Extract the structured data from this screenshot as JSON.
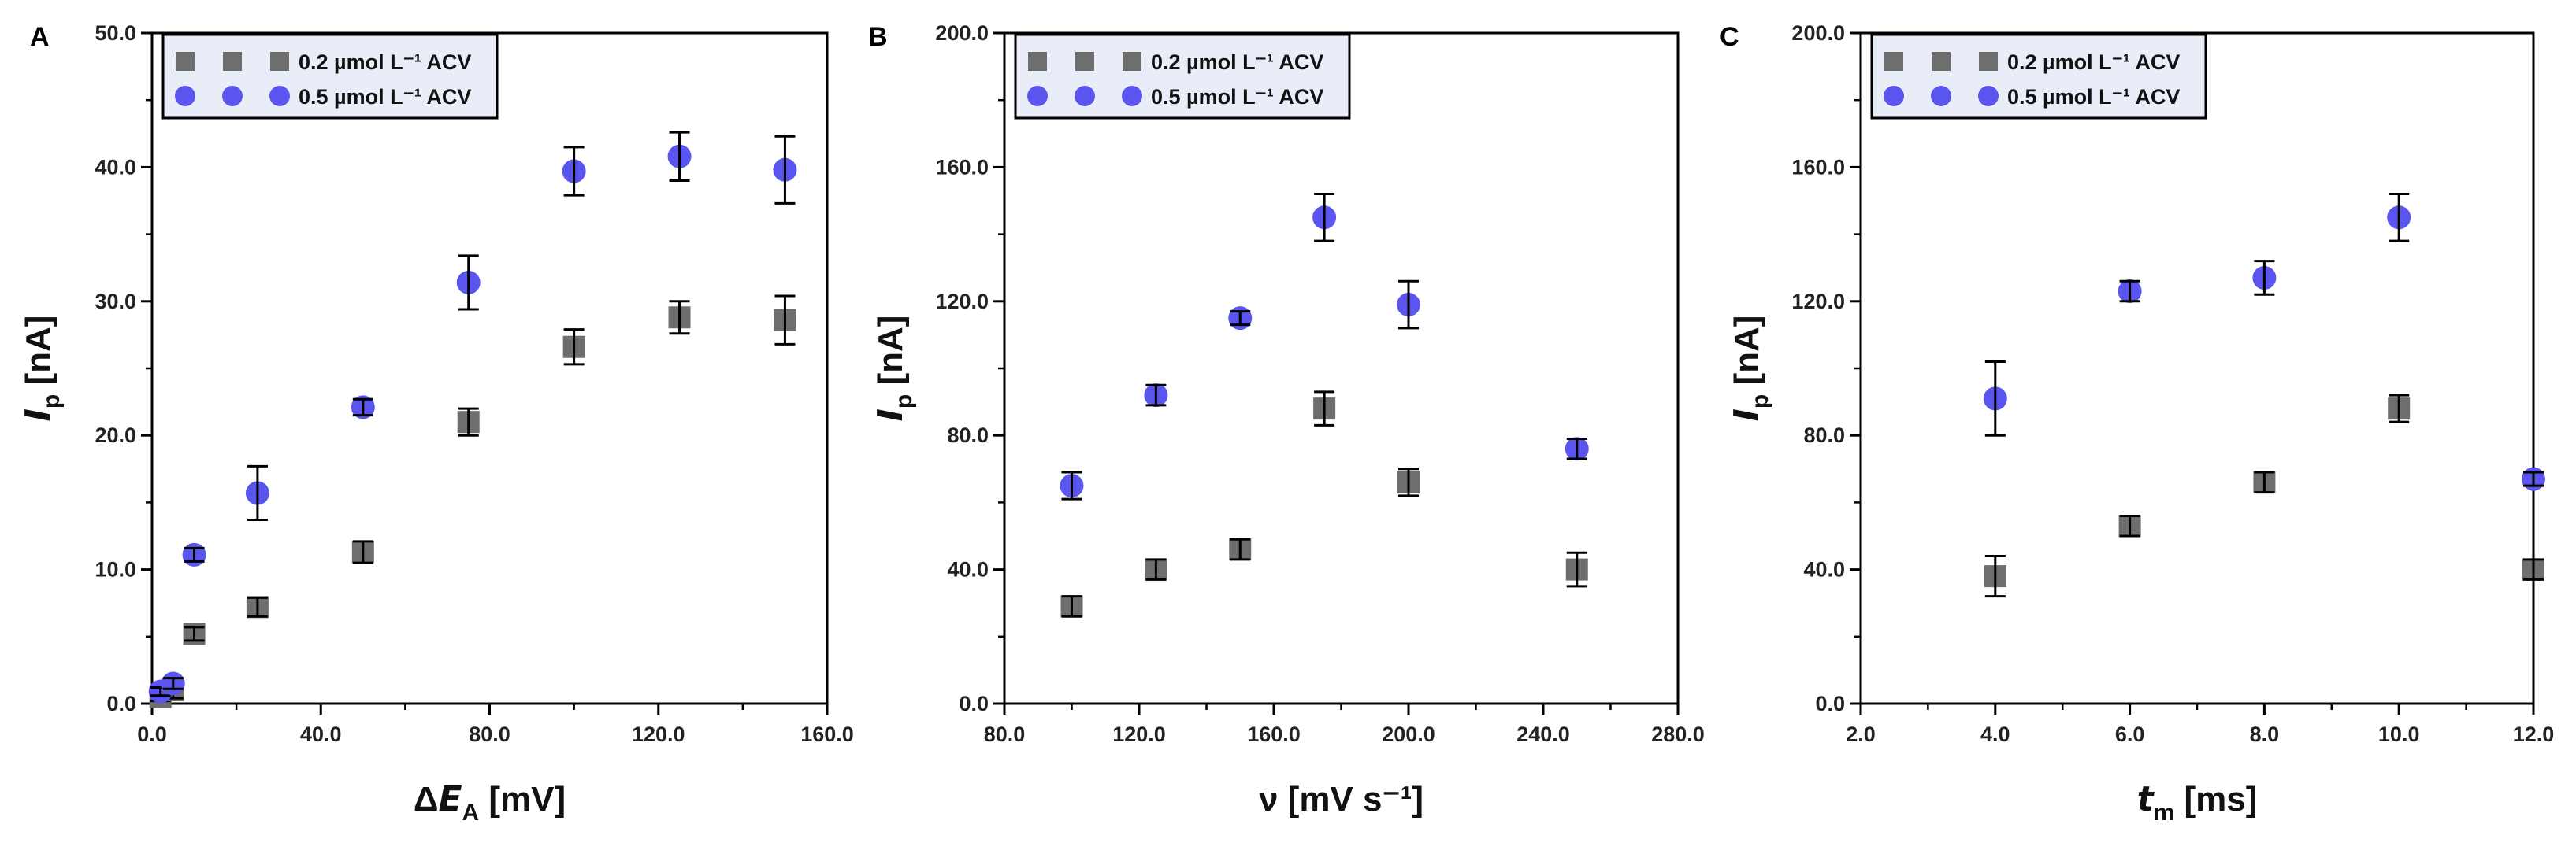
{
  "chart_data": [
    {
      "panel": "A",
      "type": "scatter",
      "xlabel_prefix": "Δ",
      "xlabel_symbol": "E",
      "xlabel_sub": "A",
      "xlabel_unit": " [mV]",
      "ylabel_symbol": "I",
      "ylabel_sub": "p",
      "ylabel_unit": " [nA]",
      "xlim": [
        0,
        160
      ],
      "ylim": [
        0,
        50
      ],
      "xticks": [
        "0.0",
        "40.0",
        "80.0",
        "120.0",
        "160.0"
      ],
      "xtick_values": [
        0,
        40,
        80,
        120,
        160
      ],
      "xminor_values": [
        20,
        60,
        100,
        140
      ],
      "yticks": [
        "0.0",
        "10.0",
        "20.0",
        "30.0",
        "40.0",
        "50.0"
      ],
      "ytick_values": [
        0,
        10,
        20,
        30,
        40,
        50
      ],
      "series": [
        {
          "name": "0.2 µmol L⁻¹ ACV",
          "marker": "square",
          "color": "#6e6e6e",
          "x": [
            2,
            5,
            10,
            25,
            50,
            75,
            100,
            125,
            150
          ],
          "y": [
            0.5,
            1.0,
            5.2,
            7.2,
            11.3,
            21.0,
            26.6,
            28.8,
            28.6
          ],
          "err": [
            0.3,
            0.6,
            0.5,
            0.7,
            0.8,
            1.0,
            1.3,
            1.2,
            1.8
          ]
        },
        {
          "name": "0.5 µmol L⁻¹ ACV",
          "marker": "circle",
          "color": "#5a55ee",
          "x": [
            2,
            5,
            10,
            25,
            50,
            75,
            100,
            125,
            150
          ],
          "y": [
            0.9,
            1.5,
            11.1,
            15.7,
            22.1,
            31.4,
            39.7,
            40.8,
            39.8
          ],
          "err": [
            0.3,
            0.4,
            0.5,
            2.0,
            0.6,
            2.0,
            1.8,
            1.8,
            2.5
          ]
        }
      ]
    },
    {
      "panel": "B",
      "type": "scatter",
      "xlabel_prefix": "",
      "xlabel_symbol": "ν",
      "xlabel_sub": "",
      "xlabel_unit": " [mV s⁻¹]",
      "ylabel_symbol": "I",
      "ylabel_sub": "p",
      "ylabel_unit": " [nA]",
      "xlim": [
        80,
        280
      ],
      "ylim": [
        0,
        200
      ],
      "xticks": [
        "80.0",
        "120.0",
        "160.0",
        "200.0",
        "240.0",
        "280.0"
      ],
      "xtick_values": [
        80,
        120,
        160,
        200,
        240,
        280
      ],
      "xminor_values": [
        100,
        140,
        180,
        220,
        260
      ],
      "yticks": [
        "0.0",
        "40.0",
        "80.0",
        "120.0",
        "160.0",
        "200.0"
      ],
      "ytick_values": [
        0,
        40,
        80,
        120,
        160,
        200
      ],
      "series": [
        {
          "name": "0.2 µmol L⁻¹ ACV",
          "marker": "square",
          "color": "#6e6e6e",
          "x": [
            100,
            125,
            150,
            175,
            200,
            250
          ],
          "y": [
            29,
            40,
            46,
            88,
            66,
            40
          ],
          "err": [
            3,
            3,
            3,
            5,
            4,
            5
          ]
        },
        {
          "name": "0.5 µmol L⁻¹ ACV",
          "marker": "circle",
          "color": "#5a55ee",
          "x": [
            100,
            125,
            150,
            175,
            200,
            250
          ],
          "y": [
            65,
            92,
            115,
            145,
            119,
            76
          ],
          "err": [
            4,
            3,
            2,
            7,
            7,
            3
          ]
        }
      ]
    },
    {
      "panel": "C",
      "type": "scatter",
      "xlabel_prefix": "",
      "xlabel_symbol": "t",
      "xlabel_sub": "m",
      "xlabel_unit": " [ms]",
      "ylabel_symbol": "I",
      "ylabel_sub": "p",
      "ylabel_unit": " [nA]",
      "xlim": [
        2,
        12
      ],
      "ylim": [
        0,
        200
      ],
      "xticks": [
        "2.0",
        "4.0",
        "6.0",
        "8.0",
        "10.0",
        "12.0"
      ],
      "xtick_values": [
        2,
        4,
        6,
        8,
        10,
        12
      ],
      "xminor_values": [
        3,
        5,
        7,
        9,
        11
      ],
      "yticks": [
        "0.0",
        "40.0",
        "80.0",
        "120.0",
        "160.0",
        "200.0"
      ],
      "ytick_values": [
        0,
        40,
        80,
        120,
        160,
        200
      ],
      "series": [
        {
          "name": "0.2 µmol L⁻¹ ACV",
          "marker": "square",
          "color": "#6e6e6e",
          "x": [
            4,
            6,
            8,
            10,
            12
          ],
          "y": [
            38,
            53,
            66,
            88,
            40
          ],
          "err": [
            6,
            3,
            3,
            4,
            3
          ]
        },
        {
          "name": "0.5 µmol L⁻¹ ACV",
          "marker": "circle",
          "color": "#5a55ee",
          "x": [
            4,
            6,
            8,
            10,
            12
          ],
          "y": [
            91,
            123,
            127,
            145,
            67
          ],
          "err": [
            11,
            3,
            5,
            7,
            2
          ]
        }
      ]
    }
  ]
}
